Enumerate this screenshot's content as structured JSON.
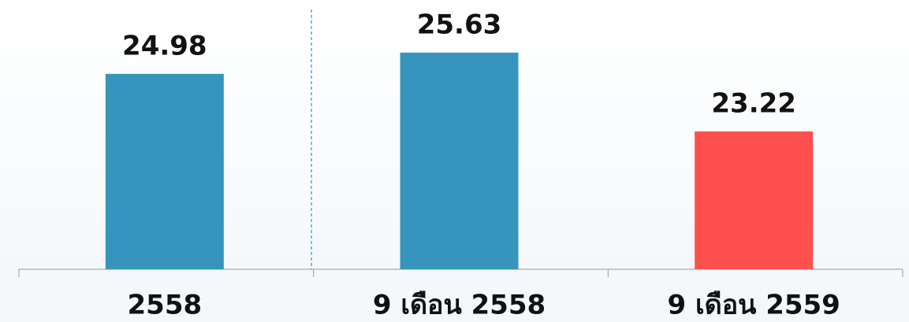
{
  "chart_data": {
    "type": "bar",
    "categories": [
      "2558",
      "9 เดือน 2558",
      "9 เดือน 2559"
    ],
    "values": [
      24.98,
      25.63,
      23.22
    ],
    "colors": [
      "#3795bd",
      "#3795bd",
      "#ff5050"
    ],
    "ylim": [
      19,
      26
    ]
  }
}
